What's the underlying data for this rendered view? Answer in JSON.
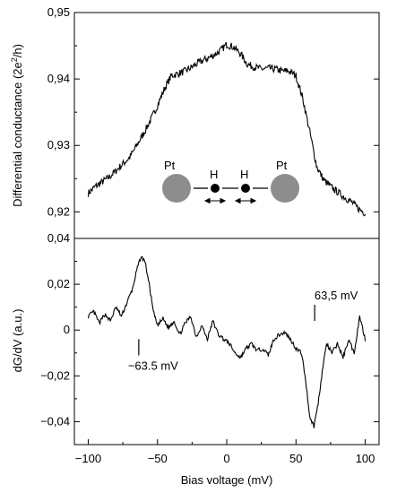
{
  "chart_data": [
    {
      "type": "line",
      "ylabel_main": "Differential conductance (2e",
      "ylabel_sup": "2",
      "ylabel_tail": "/h)",
      "xlim": [
        -110,
        110
      ],
      "ylim": [
        0.916,
        0.95
      ],
      "yticks": [
        0.92,
        0.93,
        0.94,
        0.95
      ],
      "ytick_labels": [
        "0,92",
        "0,93",
        "0,94",
        "0,95"
      ],
      "series": [
        {
          "color": "#000000",
          "x": [
            -100,
            -95,
            -90,
            -85,
            -80,
            -75,
            -70,
            -65,
            -60,
            -55,
            -50,
            -45,
            -40,
            -35,
            -30,
            -25,
            -20,
            -15,
            -10,
            -5,
            0,
            5,
            10,
            15,
            20,
            25,
            30,
            35,
            40,
            45,
            50,
            55,
            60,
            65,
            70,
            75,
            80,
            85,
            90,
            95,
            100
          ],
          "y": [
            0.9228,
            0.9238,
            0.9245,
            0.9252,
            0.9262,
            0.9272,
            0.9282,
            0.93,
            0.9318,
            0.9338,
            0.936,
            0.9385,
            0.9405,
            0.9408,
            0.9412,
            0.9418,
            0.9425,
            0.943,
            0.9435,
            0.9442,
            0.9452,
            0.9448,
            0.9438,
            0.9422,
            0.9418,
            0.9415,
            0.9416,
            0.9415,
            0.9412,
            0.9412,
            0.9405,
            0.937,
            0.932,
            0.9268,
            0.9248,
            0.9238,
            0.923,
            0.9222,
            0.9215,
            0.9205,
            0.9198
          ]
        }
      ],
      "inset": {
        "left_atom": "Pt",
        "right_atom": "Pt",
        "h1": "H",
        "h2": "H"
      }
    },
    {
      "type": "line",
      "xlabel": "Bias voltage (mV)",
      "ylabel": "dG/dV (a.u.)",
      "xlim": [
        -110,
        110
      ],
      "ylim": [
        -0.05,
        0.04
      ],
      "xticks": [
        -100,
        -50,
        0,
        50,
        100
      ],
      "xtick_labels": [
        "-100",
        "-50",
        "0",
        "50",
        "100"
      ],
      "yticks": [
        -0.04,
        -0.02,
        0,
        0.02,
        0.04
      ],
      "ytick_labels": [
        "-0,04",
        "-0,02",
        "0",
        "0,02",
        "0,04"
      ],
      "series": [
        {
          "color": "#000000",
          "x": [
            -100,
            -96,
            -92,
            -88,
            -84,
            -80,
            -76,
            -72,
            -68,
            -65,
            -62,
            -59,
            -56,
            -53,
            -50,
            -46,
            -42,
            -38,
            -34,
            -30,
            -26,
            -22,
            -18,
            -14,
            -10,
            -6,
            -2,
            2,
            6,
            10,
            14,
            18,
            22,
            26,
            30,
            34,
            38,
            42,
            46,
            50,
            54,
            57,
            60,
            63,
            66,
            69,
            72,
            76,
            80,
            84,
            88,
            92,
            96,
            100
          ],
          "y": [
            0.006,
            0.008,
            0.003,
            0.007,
            0.004,
            0.01,
            0.006,
            0.012,
            0.018,
            0.026,
            0.032,
            0.03,
            0.02,
            0.008,
            0.002,
            0.005,
            0.001,
            0.004,
            -0.002,
            0.003,
            0.006,
            -0.003,
            0.002,
            -0.004,
            0.004,
            -0.002,
            -0.004,
            -0.006,
            -0.01,
            -0.012,
            -0.008,
            -0.006,
            -0.009,
            -0.008,
            -0.011,
            -0.004,
            -0.002,
            -0.001,
            -0.004,
            -0.008,
            -0.01,
            -0.022,
            -0.038,
            -0.042,
            -0.032,
            -0.018,
            -0.006,
            -0.01,
            -0.006,
            -0.012,
            -0.004,
            -0.01,
            0.006,
            -0.004
          ]
        }
      ],
      "annotations": [
        {
          "text": "−63.5 mV",
          "x": -63.5,
          "y": -0.004
        },
        {
          "text": "63,5 mV",
          "x": 63.5,
          "y": 0.004
        }
      ]
    }
  ]
}
